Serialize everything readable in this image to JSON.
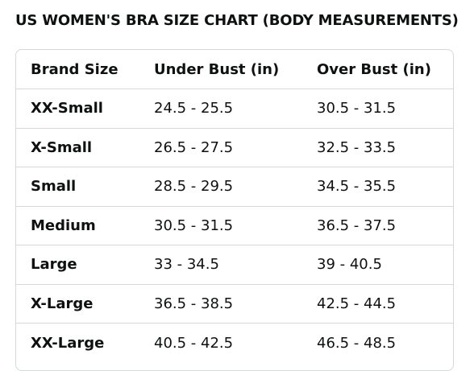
{
  "title": "US WOMEN'S BRA SIZE CHART (BODY MEASUREMENTS)",
  "table": {
    "headers": [
      "Brand Size",
      "Under Bust (in)",
      "Over Bust (in)"
    ],
    "rows": [
      [
        "XX-Small",
        "24.5 - 25.5",
        "30.5 - 31.5"
      ],
      [
        "X-Small",
        "26.5 - 27.5",
        "32.5 - 33.5"
      ],
      [
        "Small",
        "28.5 - 29.5",
        "34.5 - 35.5"
      ],
      [
        "Medium",
        "30.5 - 31.5",
        "36.5 - 37.5"
      ],
      [
        "Large",
        "33 - 34.5",
        "39 - 40.5"
      ],
      [
        "X-Large",
        "36.5 - 38.5",
        "42.5 - 44.5"
      ],
      [
        "XX-Large",
        "40.5 - 42.5",
        "46.5 - 48.5"
      ]
    ]
  },
  "colors": {
    "text": "#0f1111",
    "border": "#d5d9d9",
    "background": "#ffffff"
  }
}
